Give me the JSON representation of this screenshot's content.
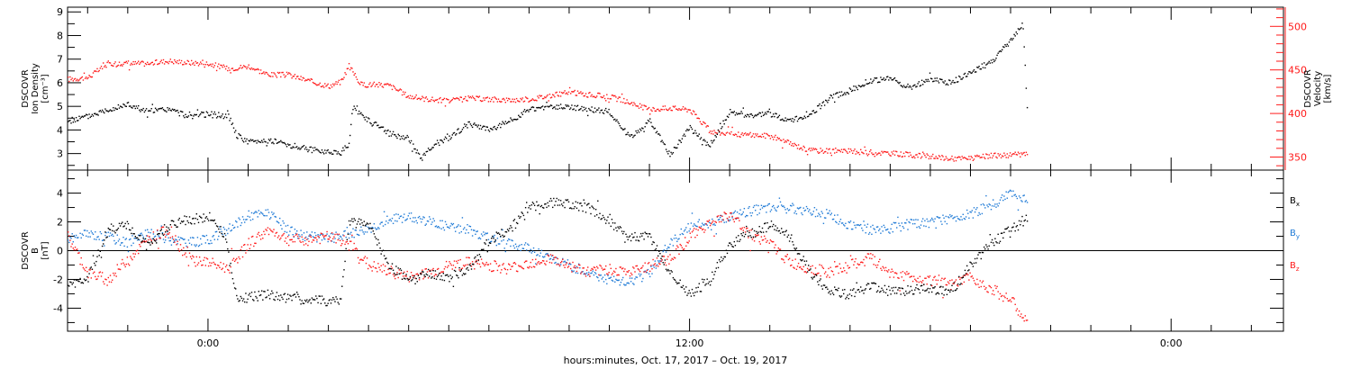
{
  "colors": {
    "black": "#000000",
    "red": "#ff1a1a",
    "blue": "#1f7ad6"
  },
  "xlabel": "hours:minutes, Oct. 17, 2017 – Oct. 19, 2017",
  "chart_data": [
    {
      "type": "scatter",
      "panel": "ion-density-velocity",
      "xlim_hours": [
        -3.5,
        26.8
      ],
      "x_ticks": [
        {
          "hour": 0,
          "label": "0:00"
        },
        {
          "hour": 12,
          "label": "12:00"
        },
        {
          "hour": 24,
          "label": "0:00"
        }
      ],
      "ylabel_left": [
        "DSCOVR",
        "Ion Density",
        "[cm⁻³]"
      ],
      "ylim_left": [
        2.3,
        9.2
      ],
      "yticks_left": [
        3,
        4,
        5,
        6,
        7,
        8,
        9
      ],
      "ylabel_right": [
        "DSCOVR",
        "Velocity",
        "[km/s]"
      ],
      "ylim_right": [
        335,
        522
      ],
      "yticks_right": [
        350,
        400,
        450,
        500
      ],
      "series": [
        {
          "color": "black",
          "axis": "left",
          "points": [
            [
              -3.5,
              4.4
            ],
            [
              -3.0,
              4.6
            ],
            [
              -2.5,
              4.9
            ],
            [
              -2.0,
              5.1
            ],
            [
              -1.5,
              4.8
            ],
            [
              -1.0,
              4.9
            ],
            [
              -0.5,
              4.6
            ],
            [
              0.0,
              4.7
            ],
            [
              0.5,
              4.6
            ],
            [
              0.7,
              3.8
            ],
            [
              1.0,
              3.5
            ],
            [
              1.5,
              3.6
            ],
            [
              2.0,
              3.4
            ],
            [
              2.5,
              3.2
            ],
            [
              3.0,
              3.1
            ],
            [
              3.3,
              3.1
            ],
            [
              3.5,
              3.4
            ],
            [
              3.6,
              5.0
            ],
            [
              4.0,
              4.4
            ],
            [
              4.5,
              3.9
            ],
            [
              5.0,
              3.6
            ],
            [
              5.3,
              2.8
            ],
            [
              5.6,
              3.4
            ],
            [
              6.0,
              3.7
            ],
            [
              6.5,
              4.3
            ],
            [
              7.0,
              4.0
            ],
            [
              7.5,
              4.4
            ],
            [
              8.0,
              4.9
            ],
            [
              8.5,
              5.0
            ],
            [
              9.0,
              5.0
            ],
            [
              9.5,
              4.9
            ],
            [
              10.0,
              4.8
            ],
            [
              10.5,
              3.7
            ],
            [
              11.0,
              4.4
            ],
            [
              11.5,
              3.0
            ],
            [
              12.0,
              4.1
            ],
            [
              12.5,
              3.4
            ],
            [
              13.0,
              4.8
            ],
            [
              13.5,
              4.6
            ],
            [
              14.0,
              4.7
            ],
            [
              14.5,
              4.4
            ],
            [
              15.0,
              4.7
            ],
            [
              15.5,
              5.4
            ],
            [
              16.0,
              5.7
            ],
            [
              16.5,
              6.1
            ],
            [
              17.0,
              6.2
            ],
            [
              17.5,
              5.8
            ],
            [
              18.0,
              6.2
            ],
            [
              18.5,
              6.0
            ],
            [
              19.0,
              6.5
            ],
            [
              19.5,
              6.9
            ],
            [
              20.0,
              7.8
            ],
            [
              20.3,
              8.5
            ],
            [
              20.4,
              5.0
            ]
          ]
        },
        {
          "color": "red",
          "axis": "right",
          "points": [
            [
              -3.5,
              440
            ],
            [
              -3.0,
              442
            ],
            [
              -2.5,
              458
            ],
            [
              -2.0,
              458
            ],
            [
              -1.5,
              458
            ],
            [
              -1.0,
              461
            ],
            [
              -0.5,
              459
            ],
            [
              0.0,
              458
            ],
            [
              0.5,
              452
            ],
            [
              1.0,
              455
            ],
            [
              1.5,
              445
            ],
            [
              2.0,
              445
            ],
            [
              2.5,
              438
            ],
            [
              3.0,
              432
            ],
            [
              3.3,
              437
            ],
            [
              3.5,
              455
            ],
            [
              3.8,
              434
            ],
            [
              4.5,
              433
            ],
            [
              5.0,
              420
            ],
            [
              5.5,
              417
            ],
            [
              6.0,
              415
            ],
            [
              6.5,
              418
            ],
            [
              7.0,
              417
            ],
            [
              7.5,
              416
            ],
            [
              8.0,
              417
            ],
            [
              8.5,
              421
            ],
            [
              9.0,
              425
            ],
            [
              9.5,
              422
            ],
            [
              10.0,
              420
            ],
            [
              10.5,
              413
            ],
            [
              11.0,
              405
            ],
            [
              11.5,
              407
            ],
            [
              12.0,
              405
            ],
            [
              12.5,
              380
            ],
            [
              13.0,
              377
            ],
            [
              13.5,
              376
            ],
            [
              14.0,
              375
            ],
            [
              14.5,
              366
            ],
            [
              15.0,
              358
            ],
            [
              15.5,
              358
            ],
            [
              16.0,
              357
            ],
            [
              16.5,
              356
            ],
            [
              17.0,
              355
            ],
            [
              17.5,
              353
            ],
            [
              18.0,
              351
            ],
            [
              18.5,
              349
            ],
            [
              19.0,
              349
            ],
            [
              19.5,
              352
            ],
            [
              20.0,
              353
            ],
            [
              20.4,
              354
            ]
          ]
        }
      ]
    },
    {
      "type": "scatter",
      "panel": "magnetic-field",
      "xlim_hours": [
        -3.5,
        26.8
      ],
      "ylabel": [
        "DSCOVR",
        "B",
        "[nT]"
      ],
      "ylim": [
        -5.6,
        5.6
      ],
      "yticks": [
        -4,
        -2,
        0,
        2,
        4
      ],
      "legend": [
        {
          "name": "B",
          "sub": "x",
          "color": "black"
        },
        {
          "name": "B",
          "sub": "y",
          "color": "blue"
        },
        {
          "name": "B",
          "sub": "z",
          "color": "red"
        }
      ],
      "series": [
        {
          "name": "Bx",
          "color": "black",
          "points": [
            [
              -3.5,
              -2.4
            ],
            [
              -3.0,
              -1.8
            ],
            [
              -2.5,
              1.5
            ],
            [
              -2.0,
              1.8
            ],
            [
              -1.5,
              0.3
            ],
            [
              -1.0,
              1.8
            ],
            [
              -0.5,
              2.2
            ],
            [
              0.0,
              2.4
            ],
            [
              0.4,
              1.2
            ],
            [
              0.7,
              -3.3
            ],
            [
              1.5,
              -3.0
            ],
            [
              2.0,
              -3.3
            ],
            [
              2.5,
              -3.4
            ],
            [
              3.0,
              -3.5
            ],
            [
              3.3,
              -3.3
            ],
            [
              3.5,
              2.0
            ],
            [
              4.0,
              1.8
            ],
            [
              4.5,
              -1.0
            ],
            [
              5.0,
              -2.0
            ],
            [
              5.5,
              -1.5
            ],
            [
              6.0,
              -1.8
            ],
            [
              6.5,
              -1.2
            ],
            [
              7.0,
              0.8
            ],
            [
              7.5,
              1.5
            ],
            [
              8.0,
              3.0
            ],
            [
              8.5,
              3.4
            ],
            [
              9.0,
              3.3
            ],
            [
              9.5,
              3.0
            ],
            [
              10.0,
              2.0
            ],
            [
              10.5,
              1.0
            ],
            [
              11.0,
              1.0
            ],
            [
              11.5,
              -1.5
            ],
            [
              12.0,
              -3.0
            ],
            [
              12.5,
              -2.0
            ],
            [
              13.0,
              0.5
            ],
            [
              13.5,
              1.2
            ],
            [
              14.0,
              1.8
            ],
            [
              14.5,
              1.0
            ],
            [
              15.0,
              -1.5
            ],
            [
              15.5,
              -2.8
            ],
            [
              16.0,
              -3.0
            ],
            [
              16.5,
              -2.5
            ],
            [
              17.0,
              -2.8
            ],
            [
              17.5,
              -2.7
            ],
            [
              18.0,
              -2.6
            ],
            [
              18.5,
              -2.8
            ],
            [
              19.0,
              -1.0
            ],
            [
              19.5,
              0.5
            ],
            [
              20.0,
              1.5
            ],
            [
              20.4,
              2.2
            ]
          ]
        },
        {
          "name": "By",
          "color": "blue",
          "points": [
            [
              -3.5,
              0.8
            ],
            [
              -3.0,
              1.2
            ],
            [
              -2.5,
              1.0
            ],
            [
              -2.0,
              0.6
            ],
            [
              -1.5,
              1.2
            ],
            [
              -1.0,
              1.0
            ],
            [
              -0.5,
              0.6
            ],
            [
              0.0,
              0.8
            ],
            [
              0.5,
              1.5
            ],
            [
              1.0,
              2.5
            ],
            [
              1.5,
              2.6
            ],
            [
              2.0,
              1.4
            ],
            [
              2.5,
              1.0
            ],
            [
              3.0,
              0.9
            ],
            [
              3.5,
              1.2
            ],
            [
              4.0,
              1.6
            ],
            [
              4.5,
              2.2
            ],
            [
              5.0,
              2.4
            ],
            [
              5.5,
              2.1
            ],
            [
              6.0,
              1.7
            ],
            [
              6.5,
              1.5
            ],
            [
              7.0,
              0.9
            ],
            [
              7.5,
              0.5
            ],
            [
              8.0,
              0.3
            ],
            [
              8.5,
              -0.5
            ],
            [
              9.0,
              -1.0
            ],
            [
              9.5,
              -1.5
            ],
            [
              10.0,
              -2.0
            ],
            [
              10.5,
              -2.2
            ],
            [
              11.0,
              -1.5
            ],
            [
              11.5,
              0.5
            ],
            [
              12.0,
              1.8
            ],
            [
              12.5,
              2.0
            ],
            [
              13.0,
              2.4
            ],
            [
              13.5,
              2.8
            ],
            [
              14.0,
              3.0
            ],
            [
              14.5,
              3.0
            ],
            [
              15.0,
              2.8
            ],
            [
              15.5,
              2.5
            ],
            [
              16.0,
              1.8
            ],
            [
              16.5,
              1.5
            ],
            [
              17.0,
              1.6
            ],
            [
              17.5,
              1.9
            ],
            [
              18.0,
              2.0
            ],
            [
              18.5,
              2.3
            ],
            [
              19.0,
              2.6
            ],
            [
              19.5,
              3.2
            ],
            [
              20.0,
              4.0
            ],
            [
              20.4,
              3.5
            ]
          ]
        },
        {
          "name": "Bz",
          "color": "red",
          "points": [
            [
              -3.5,
              1.0
            ],
            [
              -3.0,
              -1.5
            ],
            [
              -2.5,
              -2.0
            ],
            [
              -2.0,
              -0.5
            ],
            [
              -1.5,
              0.8
            ],
            [
              -1.0,
              1.5
            ],
            [
              -0.5,
              -0.5
            ],
            [
              0.0,
              -0.8
            ],
            [
              0.5,
              -1.2
            ],
            [
              1.0,
              0.5
            ],
            [
              1.5,
              1.5
            ],
            [
              2.0,
              0.8
            ],
            [
              2.5,
              0.8
            ],
            [
              3.0,
              1.0
            ],
            [
              3.5,
              0.6
            ],
            [
              4.0,
              -1.0
            ],
            [
              4.5,
              -1.4
            ],
            [
              5.0,
              -1.8
            ],
            [
              5.5,
              -1.5
            ],
            [
              6.0,
              -1.0
            ],
            [
              6.5,
              -0.8
            ],
            [
              7.0,
              -1.0
            ],
            [
              7.5,
              -1.2
            ],
            [
              8.0,
              -0.8
            ],
            [
              8.5,
              -0.5
            ],
            [
              9.0,
              -1.0
            ],
            [
              9.5,
              -1.5
            ],
            [
              10.0,
              -1.2
            ],
            [
              10.5,
              -1.5
            ],
            [
              11.0,
              -1.0
            ],
            [
              11.5,
              -0.5
            ],
            [
              12.0,
              1.0
            ],
            [
              12.5,
              2.0
            ],
            [
              13.0,
              2.5
            ],
            [
              13.5,
              1.2
            ],
            [
              14.0,
              0.5
            ],
            [
              14.5,
              -0.8
            ],
            [
              15.0,
              -1.2
            ],
            [
              15.5,
              -1.5
            ],
            [
              16.0,
              -1.0
            ],
            [
              16.5,
              -0.5
            ],
            [
              17.0,
              -1.5
            ],
            [
              17.5,
              -1.8
            ],
            [
              18.0,
              -2.0
            ],
            [
              18.5,
              -2.4
            ],
            [
              19.0,
              -1.8
            ],
            [
              19.5,
              -2.6
            ],
            [
              20.0,
              -3.4
            ],
            [
              20.4,
              -5.0
            ]
          ]
        }
      ]
    }
  ]
}
